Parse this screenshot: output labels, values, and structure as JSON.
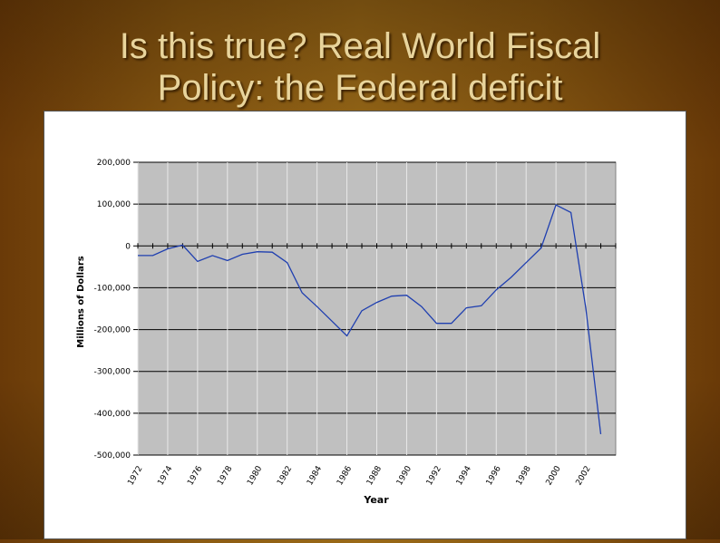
{
  "slide": {
    "title_line1": "Is this true? Real World Fiscal",
    "title_line2": "Policy: the Federal deficit"
  },
  "colors": {
    "plot_background": "#c0c0c0",
    "series_line": "#1f3fb0",
    "title_text": "#e8d49c"
  },
  "chart_data": {
    "type": "line",
    "title": "",
    "xlabel": "Year",
    "ylabel": "Millions of Dollars",
    "ylim": [
      -500000,
      200000
    ],
    "xlim": [
      1972,
      2004
    ],
    "y_ticks": [
      200000,
      100000,
      0,
      -100000,
      -200000,
      -300000,
      -400000,
      -500000
    ],
    "y_tick_labels": [
      "200,000",
      "100,000",
      "0",
      "-100,000",
      "-200,000",
      "-300,000",
      "-400,000",
      "-500,000"
    ],
    "x_ticks": [
      1972,
      1974,
      1976,
      1978,
      1980,
      1982,
      1984,
      1986,
      1988,
      1990,
      1992,
      1994,
      1996,
      1998,
      2000,
      2002
    ],
    "x_tick_labels": [
      "1972",
      "1974",
      "1976",
      "1978",
      "1980",
      "1982",
      "1984",
      "1986",
      "1988",
      "1990",
      "1992",
      "1994",
      "1996",
      "1998",
      "2000",
      "2002"
    ],
    "grid": true,
    "legend": "none",
    "series": [
      {
        "x": [
          1972,
          1973,
          1974,
          1975,
          1976,
          1977,
          1978,
          1979,
          1980,
          1981,
          1982,
          1983,
          1984,
          1985,
          1986,
          1987,
          1988,
          1989,
          1990,
          1991,
          1992,
          1993,
          1994,
          1995,
          1996,
          1997,
          1998,
          1999,
          2000,
          2001,
          2002,
          2003
        ],
        "values": [
          -23000,
          -23000,
          -7000,
          2000,
          -37000,
          -23000,
          -35000,
          -20000,
          -14000,
          -15000,
          -40000,
          -112000,
          -145000,
          -180000,
          -215000,
          -155000,
          -135000,
          -120000,
          -118000,
          -145000,
          -185000,
          -185000,
          -148000,
          -143000,
          -105000,
          -75000,
          -40000,
          -5000,
          98000,
          80000,
          -150000,
          -450000
        ]
      }
    ]
  }
}
